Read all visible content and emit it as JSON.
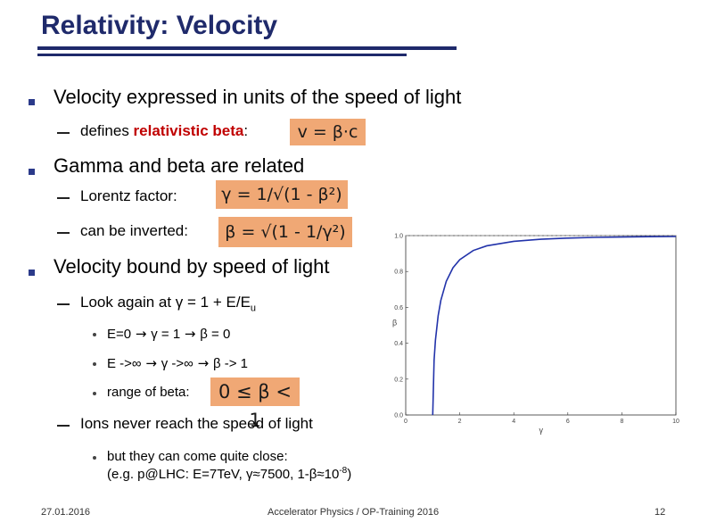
{
  "slide": {
    "title": "Relativity: Velocity",
    "bullets": {
      "b1": "Velocity expressed in units of the speed of light",
      "b1_sub_prefix": "defines ",
      "b1_sub_red": "relativistic beta",
      "b1_sub_suffix": ":",
      "b1_eq": "v = β·c",
      "b2": "Gamma and beta are related",
      "b2_sub1": "Lorentz factor:",
      "b2_eq1": "γ = 1/√(1 - β²)",
      "b2_sub2": "can be inverted:",
      "b2_eq2": "β = √(1 - 1/γ²)",
      "b3": "Velocity bound by speed of light",
      "b3_sub1": "Look again at γ = 1 + E/E",
      "b3_sub1_subscript": "u",
      "b3_dot1": "E=0  γ = 1  β = 0",
      "b3_dot2": "E ->∞  γ ->∞  β -> 1",
      "b3_dot3": "range of beta:",
      "b3_eq3": "0 ≤ β < 1",
      "b3_sub2": "Ions never reach the speed of light",
      "b3_dot4_line1": "but they can come quite close:",
      "b3_dot4_line2_prefix": "(e.g. p@LHC: E=7TeV, γ≈7500, 1-β≈10",
      "b3_dot4_line2_sup": "-8",
      "b3_dot4_line2_suffix": ")"
    },
    "footer": {
      "date": "27.01.2016",
      "center": "Accelerator Physics / OP-Training 2016",
      "page": "12"
    }
  },
  "chart_data": {
    "type": "line",
    "xlabel": "γ",
    "ylabel": "β",
    "xlim": [
      0,
      10
    ],
    "ylim": [
      0,
      1.0
    ],
    "x_ticks": [
      "0",
      "2",
      "4",
      "6",
      "8",
      "10"
    ],
    "y_ticks": [
      "0.0",
      "0.2",
      "0.4",
      "0.6",
      "0.8",
      "1.0"
    ],
    "reference_line_y": 1.0,
    "series": [
      {
        "function": "beta = sqrt(1 - 1/gamma^2)",
        "x": [
          1.0,
          1.05,
          1.1,
          1.2,
          1.3,
          1.5,
          1.75,
          2.0,
          2.5,
          3.0,
          4.0,
          5.0,
          6.0,
          7.0,
          8.0,
          9.0,
          10.0
        ],
        "y": [
          0.0,
          0.305,
          0.417,
          0.553,
          0.639,
          0.745,
          0.821,
          0.866,
          0.917,
          0.943,
          0.968,
          0.98,
          0.986,
          0.99,
          0.992,
          0.994,
          0.995
        ],
        "color": "#2233aa"
      }
    ]
  }
}
